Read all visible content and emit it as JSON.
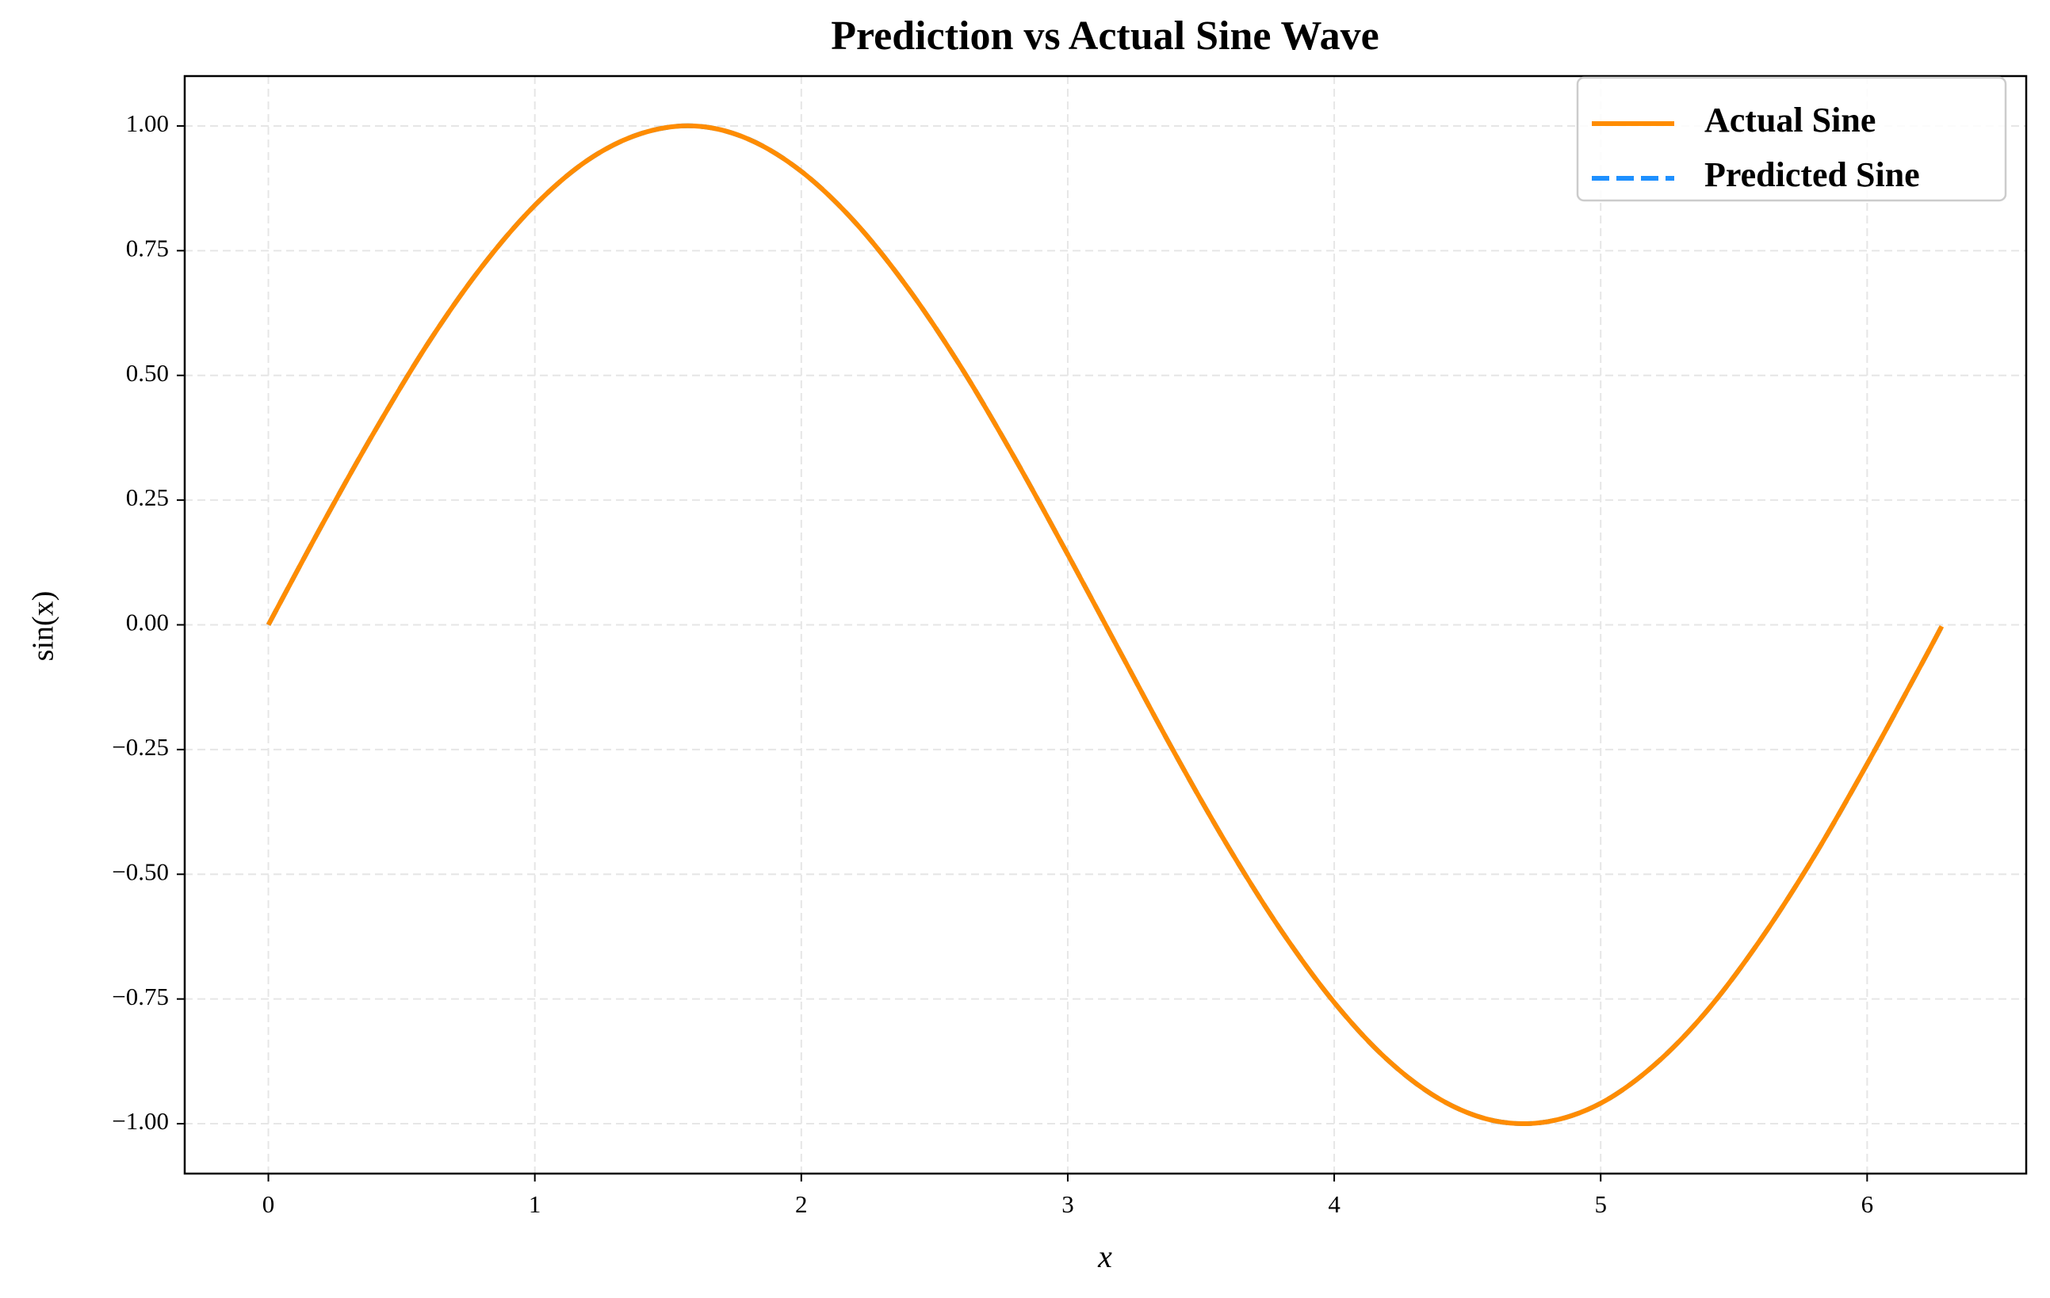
{
  "chart_data": {
    "type": "line",
    "title": "Prediction vs Actual Sine Wave",
    "x_label": "x",
    "y_label": "sin(x)",
    "x": [
      0,
      0.2,
      0.4,
      0.6,
      0.8,
      1.0,
      1.2,
      1.4,
      1.6,
      1.8,
      2.0,
      2.2,
      2.4,
      2.6,
      2.8,
      3.0,
      3.2,
      3.4,
      3.6,
      3.8,
      4.0,
      4.2,
      4.4,
      4.6,
      4.8,
      5.0,
      5.2,
      5.4,
      5.6,
      5.8,
      6.0,
      6.2,
      6.28
    ],
    "series": [
      {
        "name": "Actual Sine",
        "color": "#ff8c00",
        "style": "solid",
        "values": [
          0,
          0.199,
          0.389,
          0.565,
          0.717,
          0.841,
          0.932,
          0.985,
          1.0,
          0.974,
          0.909,
          0.808,
          0.675,
          0.516,
          0.335,
          0.141,
          -0.058,
          -0.256,
          -0.443,
          -0.612,
          -0.757,
          -0.872,
          -0.952,
          -0.994,
          -0.996,
          -0.959,
          -0.883,
          -0.773,
          -0.631,
          -0.465,
          -0.279,
          -0.083,
          -0.003
        ]
      },
      {
        "name": "Predicted Sine",
        "color": "#1e90ff",
        "style": "dashed",
        "values": [
          0,
          0.199,
          0.389,
          0.565,
          0.717,
          0.841,
          0.932,
          0.985,
          1.0,
          0.974,
          0.909,
          0.808,
          0.675,
          0.516,
          0.335,
          0.141,
          -0.058,
          -0.256,
          -0.443,
          -0.612,
          -0.757,
          -0.872,
          -0.952,
          -0.994,
          -0.996,
          -0.959,
          -0.883,
          -0.773,
          -0.631,
          -0.465,
          -0.279,
          -0.083,
          -0.003
        ]
      }
    ],
    "xlim": [
      -0.314,
      6.597
    ],
    "ylim": [
      -1.1,
      1.1
    ],
    "xticks": [
      0,
      1,
      2,
      3,
      4,
      5,
      6
    ],
    "yticks": [
      {
        "value": -1,
        "label": "−1.00"
      },
      {
        "value": -0.75,
        "label": "−0.75"
      },
      {
        "value": -0.5,
        "label": "−0.50"
      },
      {
        "value": -0.25,
        "label": "−0.25"
      },
      {
        "value": 0,
        "label": "0.00"
      },
      {
        "value": 0.25,
        "label": "0.25"
      },
      {
        "value": 0.5,
        "label": "0.50"
      },
      {
        "value": 0.75,
        "label": "0.75"
      },
      {
        "value": 1,
        "label": "1.00"
      }
    ],
    "grid": true,
    "legend": "upper right"
  }
}
